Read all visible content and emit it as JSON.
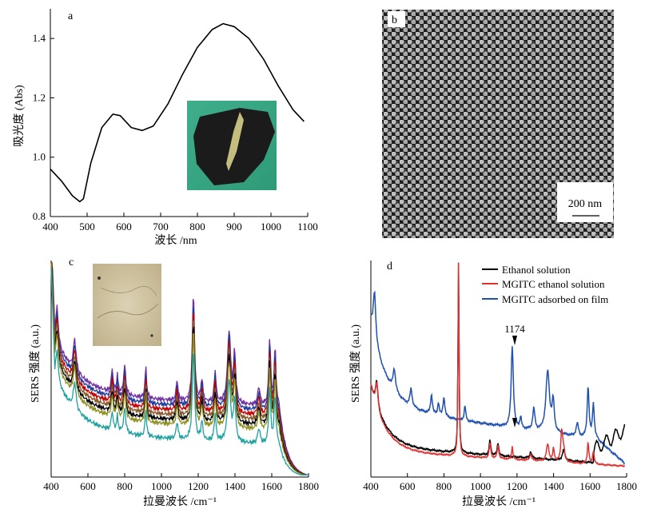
{
  "chart_data": [
    {
      "panel": "a",
      "type": "line",
      "xlabel": "波长 /nm",
      "ylabel": "吸光度 (Abs)",
      "xlim": [
        400,
        1100
      ],
      "ylim": [
        0.8,
        1.5
      ],
      "xticks": [
        400,
        500,
        600,
        700,
        800,
        900,
        1000,
        1100
      ],
      "yticks": [
        0.8,
        1.0,
        1.2,
        1.4
      ],
      "inset": "photo of film sample",
      "series": [
        {
          "name": "absorbance",
          "x": [
            400,
            430,
            460,
            480,
            490,
            510,
            540,
            570,
            590,
            620,
            650,
            680,
            720,
            760,
            800,
            840,
            870,
            900,
            940,
            980,
            1020,
            1060,
            1090
          ],
          "y": [
            0.96,
            0.92,
            0.87,
            0.85,
            0.86,
            0.98,
            1.1,
            1.145,
            1.14,
            1.1,
            1.09,
            1.105,
            1.18,
            1.28,
            1.37,
            1.43,
            1.45,
            1.44,
            1.4,
            1.33,
            1.24,
            1.16,
            1.12
          ]
        }
      ]
    },
    {
      "panel": "b",
      "type": "image",
      "scale_bar": "200 nm"
    },
    {
      "panel": "c",
      "type": "line",
      "xlabel": "拉曼波长 /cm⁻¹",
      "ylabel": "SERS 强度 (a.u.)",
      "xlim": [
        400,
        1800
      ],
      "ylim": [
        0,
        100
      ],
      "xticks": [
        400,
        600,
        800,
        1000,
        1200,
        1400,
        1600,
        1800
      ],
      "inset": "optical micrograph of film",
      "series_colors": [
        "#7030a0",
        "#1f3c9c",
        "#c00000",
        "#8b5a2b",
        "#000000",
        "#8f8f1f",
        "#20a0a0"
      ],
      "offsets": [
        2,
        1,
        0,
        -1,
        -2,
        -3,
        -6
      ]
    },
    {
      "panel": "d",
      "type": "line",
      "xlabel": "拉曼波长 /cm⁻¹",
      "ylabel": "SERS 强度 (a.u.)",
      "xlim": [
        400,
        1800
      ],
      "ylim": [
        0,
        100
      ],
      "xticks": [
        400,
        600,
        800,
        1000,
        1200,
        1400,
        1600,
        1800
      ],
      "annotation": "1174",
      "legend": [
        {
          "name": "Ethanol solution",
          "color": "#000000"
        },
        {
          "name": "MGITC ethanol solution",
          "color": "#e03030"
        },
        {
          "name": "MGITC adsorbed on film",
          "color": "#2050b0"
        }
      ]
    }
  ]
}
